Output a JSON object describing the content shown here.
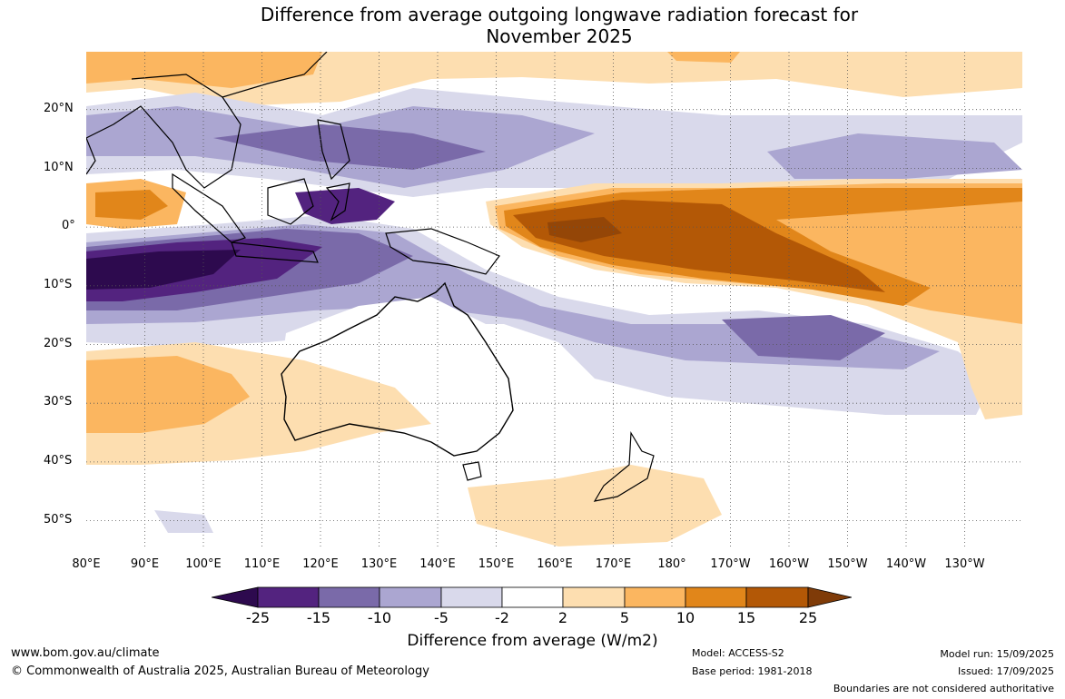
{
  "title_line1": "Difference from average outgoing longwave radiation forecast for",
  "title_line2": "November 2025",
  "lat_labels": [
    "20°N",
    "10°N",
    "0°",
    "10°S",
    "20°S",
    "30°S",
    "40°S",
    "50°S"
  ],
  "lon_labels": [
    "80°E",
    "90°E",
    "100°E",
    "110°E",
    "120°E",
    "130°E",
    "140°E",
    "150°E",
    "160°E",
    "170°E",
    "180°",
    "170°W",
    "160°W",
    "150°W",
    "140°W",
    "130°W"
  ],
  "colorbar": {
    "ticks": [
      "-25",
      "-15",
      "-10",
      "-5",
      "-2",
      "2",
      "5",
      "10",
      "15",
      "25"
    ],
    "colors": [
      "#2d0a4e",
      "#53237f",
      "#7a6aa9",
      "#aba6d1",
      "#d9d9eb",
      "#ffffff",
      "#fddeb0",
      "#fbb660",
      "#e1861a",
      "#b35806",
      "#7f3b08"
    ],
    "label": "Difference from average (W/m2)"
  },
  "footer": {
    "url": "www.bom.gov.au/climate",
    "copyright": "© Commonwealth of Australia 2025, Australian Bureau of Meteorology",
    "model": "Model: ACCESS-S2",
    "base_period": "Base period: 1981-2018",
    "model_run": "Model run: 15/09/2025",
    "issued": "Issued: 17/09/2025",
    "boundaries_note": "Boundaries are not considered authoritative"
  }
}
